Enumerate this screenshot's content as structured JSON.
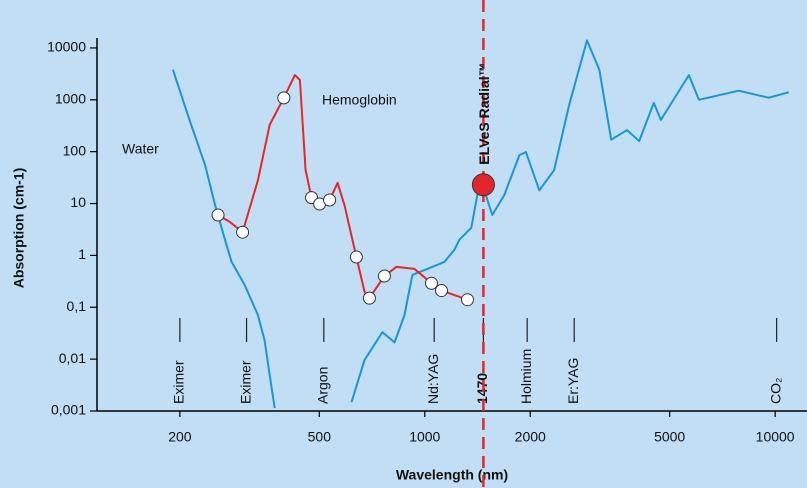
{
  "chart_data": {
    "type": "line",
    "x_label": "Wavelength (nm)",
    "y_label": "Absorption (cm-1)",
    "log_x": true,
    "log_y": true,
    "xlim": [
      116,
      12330
    ],
    "ylim": [
      0.001,
      84000
    ],
    "xticks": [
      200,
      500,
      1000,
      2000,
      5000,
      10000
    ],
    "yticks": [
      {
        "value": 0.001,
        "label": "0,001"
      },
      {
        "value": 0.01,
        "label": "0,01"
      },
      {
        "value": 0.1,
        "label": "0,1"
      },
      1,
      10,
      100,
      1000,
      10000
    ],
    "series": [
      {
        "name": "Water",
        "color": "#1a96d4",
        "x": [
          191,
          213,
          236,
          252,
          269,
          281,
          306,
          334,
          349,
          361,
          373,
          null,
          618,
          673,
          757,
          820,
          875,
          922,
          998,
          1138,
          1214,
          1255,
          1358,
          1412,
          1460,
          1559,
          1686,
          1862,
          1944,
          2123,
          2340,
          2582,
          2905,
          3148,
          3406,
          3778,
          4094,
          4506,
          4721,
          5675,
          6058,
          7873,
          9594,
          10940
        ],
        "values": [
          3800,
          410,
          55,
          9.3,
          2.0,
          0.75,
          0.27,
          0.071,
          0.023,
          0.0049,
          0.00114,
          null,
          0.00148,
          0.0096,
          0.033,
          0.021,
          0.071,
          0.42,
          0.52,
          0.75,
          1.27,
          2.0,
          3.4,
          14.6,
          23,
          6.0,
          14.6,
          86,
          98,
          18,
          44,
          790,
          14000,
          3800,
          170,
          260,
          160,
          870,
          410,
          3000,
          1000,
          1500,
          1100,
          1400
        ]
      },
      {
        "name": "Hemoglobin",
        "color": "#e3262b",
        "x": [
          257,
          278,
          302,
          334,
          361,
          396,
          426,
          440,
          457,
          475,
          501,
          535,
          564,
          590,
          638,
          673,
          695,
          767,
          830,
          935,
          1045,
          1116,
          1324
        ],
        "values": [
          6.0,
          4.4,
          2.8,
          28,
          330,
          1090,
          3000,
          2400,
          44,
          13,
          9.8,
          11.7,
          25,
          9.3,
          0.93,
          0.2,
          0.15,
          0.4,
          0.6,
          0.55,
          0.29,
          0.21,
          0.14
        ],
        "markers": {
          "x": [
            257,
            302,
            396,
            475,
            501,
            535,
            638,
            695,
            767,
            1045,
            1116,
            1324
          ],
          "values": [
            6.0,
            2.8,
            1090,
            13,
            9.8,
            11.7,
            0.93,
            0.15,
            0.4,
            0.29,
            0.21,
            0.14
          ]
        }
      }
    ],
    "highlight": {
      "label": "ELVeS Radial™",
      "x": 1470,
      "value": 23,
      "color": "#e3262b"
    },
    "lasers": [
      {
        "label": "Eximer",
        "x": 200
      },
      {
        "label": "Eximer",
        "x": 310
      },
      {
        "label": "Argon",
        "x": 515
      },
      {
        "label": "Nd:YAG",
        "x": 1064
      },
      {
        "label": "1470",
        "x": 1470,
        "bold": true
      },
      {
        "label": "Holmium",
        "x": 1960
      },
      {
        "label": "Er:YAG",
        "x": 2670
      },
      {
        "label": "CO₂",
        "x": 10100
      }
    ],
    "annotations": [
      "Water",
      "Hemoglobin"
    ]
  }
}
